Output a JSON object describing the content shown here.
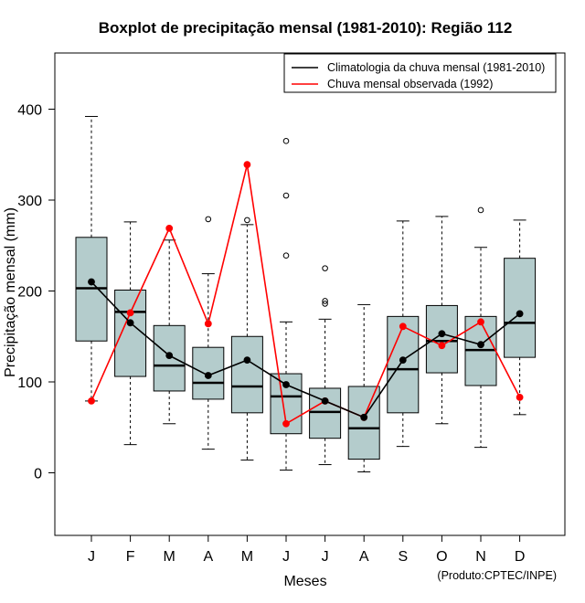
{
  "chart_data": {
    "type": "boxplot",
    "title": "Boxplot de precipitação mensal (1981-2010): Região 112",
    "xlabel": "Meses",
    "ylabel": "Precipitação mensal (mm)",
    "ylim": [
      -70,
      470
    ],
    "yticks": [
      0,
      100,
      200,
      300,
      400
    ],
    "categories": [
      "J",
      "F",
      "M",
      "A",
      "M",
      "J",
      "J",
      "A",
      "S",
      "O",
      "N",
      "D"
    ],
    "boxes": [
      {
        "whisker_low": 79,
        "q1": 145,
        "median": 203,
        "q3": 259,
        "whisker_high": 392,
        "outliers": []
      },
      {
        "whisker_low": 31,
        "q1": 106,
        "median": 177,
        "q3": 201,
        "whisker_high": 276,
        "outliers": []
      },
      {
        "whisker_low": 54,
        "q1": 90,
        "median": 118,
        "q3": 162,
        "whisker_high": 256,
        "outliers": []
      },
      {
        "whisker_low": 26,
        "q1": 81,
        "median": 99,
        "q3": 138,
        "whisker_high": 219,
        "outliers": [
          279
        ]
      },
      {
        "whisker_low": 14,
        "q1": 66,
        "median": 95,
        "q3": 150,
        "whisker_high": 273,
        "outliers": [
          278
        ]
      },
      {
        "whisker_low": 3,
        "q1": 43,
        "median": 84,
        "q3": 109,
        "whisker_high": 166,
        "outliers": [
          239,
          305,
          365
        ]
      },
      {
        "whisker_low": 9,
        "q1": 38,
        "median": 67,
        "q3": 93,
        "whisker_high": 169,
        "outliers": [
          186,
          189,
          225
        ]
      },
      {
        "whisker_low": 1,
        "q1": 15,
        "median": 49,
        "q3": 95,
        "whisker_high": 185,
        "outliers": []
      },
      {
        "whisker_low": 29,
        "q1": 66,
        "median": 114,
        "q3": 172,
        "whisker_high": 277,
        "outliers": []
      },
      {
        "whisker_low": 54,
        "q1": 110,
        "median": 145,
        "q3": 184,
        "whisker_high": 282,
        "outliers": []
      },
      {
        "whisker_low": 28,
        "q1": 96,
        "median": 135,
        "q3": 172,
        "whisker_high": 248,
        "outliers": [
          289
        ]
      },
      {
        "whisker_low": 64,
        "q1": 127,
        "median": 165,
        "q3": 236,
        "whisker_high": 278,
        "outliers": []
      }
    ],
    "series": [
      {
        "name": "Climatologia da chuva mensal (1981-2010)",
        "color": "#000000",
        "values": [
          210,
          165,
          129,
          107,
          124,
          97,
          79,
          61,
          124,
          153,
          141,
          175
        ]
      },
      {
        "name": "Chuva mensal observada (1992)",
        "color": "#ff0000",
        "values": [
          79,
          176,
          269,
          164,
          339,
          54,
          79,
          61,
          161,
          140,
          166,
          83
        ]
      }
    ],
    "box_fill": "#b4cccc",
    "credit": "(Produto:CPTEC/INPE)",
    "legend_position": "top-right"
  }
}
